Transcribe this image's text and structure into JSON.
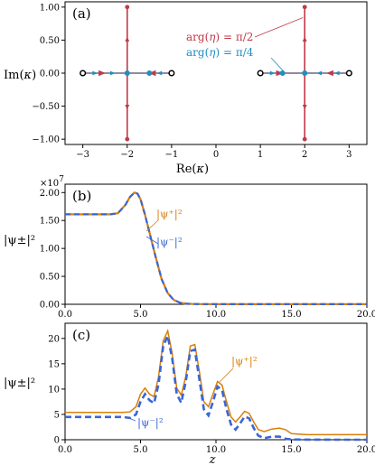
{
  "colors": {
    "red": "#c03a48",
    "blue": "#1f8fc0",
    "orange": "#d97f0a",
    "dash_blue": "#3a66d6",
    "black": "#000000"
  },
  "chart_data": [
    {
      "type": "scatter",
      "panel_label": "(a)",
      "xlabel_base": "Re(",
      "ylabel_base": "Im(",
      "axis_var": "κ",
      "axis_close": ")",
      "xlim": [
        -3.4,
        3.4
      ],
      "ylim": [
        -1.08,
        1.08
      ],
      "xticks": [
        -3,
        -2,
        -1,
        0,
        1,
        2,
        3
      ],
      "xtick_labels": [
        "−3",
        "−2",
        "−1",
        "0",
        "1",
        "2",
        "3"
      ],
      "yticks": [
        -1.0,
        -0.5,
        0.0,
        0.5,
        1.0
      ],
      "ytick_labels": [
        "−1.00",
        "−0.50",
        "0.00",
        "0.50",
        "1.00"
      ],
      "endpoint_points": [
        {
          "x": -3,
          "y": 0
        },
        {
          "x": -1,
          "y": 0
        },
        {
          "x": 1,
          "y": 0
        },
        {
          "x": 3,
          "y": 0
        }
      ],
      "series": [
        {
          "name": "arg(η) = π/2",
          "color": "red",
          "paths": [
            {
              "x": [
                -2,
                -2
              ],
              "y": [
                -1,
                1
              ]
            },
            {
              "x": [
                2,
                2
              ],
              "y": [
                -1,
                1
              ]
            },
            {
              "x": [
                -3,
                -1
              ],
              "y": [
                0,
                0
              ]
            },
            {
              "x": [
                1,
                3
              ],
              "y": [
                0,
                0
              ]
            }
          ],
          "points": [
            {
              "x": -2,
              "y": 1
            },
            {
              "x": -2,
              "y": -1
            },
            {
              "x": 2,
              "y": 1
            },
            {
              "x": 2,
              "y": -1
            },
            {
              "x": 2,
              "y": 0
            }
          ]
        },
        {
          "name": "arg(η) = π/4",
          "color": "blue",
          "paths": [
            {
              "x": [
                -3,
                -1
              ],
              "y": [
                0,
                0
              ]
            },
            {
              "x": [
                1,
                3
              ],
              "y": [
                0,
                0
              ]
            }
          ],
          "points": [
            {
              "x": -2.0,
              "y": 0
            },
            {
              "x": -1.5,
              "y": 0
            },
            {
              "x": 1.5,
              "y": 0
            },
            {
              "x": 2.0,
              "y": 0
            }
          ]
        }
      ],
      "annotations": [
        {
          "text_base": "arg(",
          "text_var": "η",
          "text_rest": ") = π/2",
          "color": "red",
          "target": {
            "x": 2.0,
            "y": 0.85
          }
        },
        {
          "text_base": "arg(",
          "text_var": "η",
          "text_rest": ") = π/4",
          "color": "blue",
          "target": {
            "x": 1.5,
            "y": 0.0
          }
        }
      ]
    },
    {
      "type": "line",
      "panel_label": "(b)",
      "ylabel": "|ψ±|²",
      "offset_label": "×10",
      "offset_exp": "7",
      "xlim": [
        0,
        20
      ],
      "ylim": [
        0,
        2.15
      ],
      "xticks": [
        0,
        5,
        10,
        15,
        20
      ],
      "xtick_labels": [
        "0.0",
        "5.0",
        "10.0",
        "15.0",
        "20.0"
      ],
      "yticks": [
        0,
        0.5,
        1.0,
        1.5,
        2.0
      ],
      "ytick_labels": [
        "0.00",
        "0.50",
        "1.00",
        "1.50",
        "2.00"
      ],
      "x": [
        0,
        1,
        2,
        3,
        3.5,
        4.0,
        4.3,
        4.6,
        4.8,
        5.0,
        5.3,
        5.6,
        6.0,
        6.4,
        6.8,
        7.2,
        7.6,
        8.0,
        8.5,
        9,
        10,
        12,
        15,
        20
      ],
      "series": [
        {
          "name": "|ψ⁺|²",
          "color": "orange",
          "values": [
            1.61,
            1.61,
            1.61,
            1.61,
            1.63,
            1.78,
            1.92,
            2.0,
            1.98,
            1.88,
            1.6,
            1.28,
            0.85,
            0.45,
            0.2,
            0.08,
            0.03,
            0.01,
            0.005,
            0.003,
            0.002,
            0.002,
            0.002,
            0.002
          ]
        },
        {
          "name": "|ψ⁻|²",
          "color": "dash_blue",
          "values": [
            1.61,
            1.61,
            1.61,
            1.61,
            1.63,
            1.78,
            1.92,
            2.0,
            1.98,
            1.88,
            1.6,
            1.28,
            0.85,
            0.45,
            0.2,
            0.08,
            0.03,
            0.01,
            0.005,
            0.003,
            0.002,
            0.002,
            0.002,
            0.002
          ]
        }
      ],
      "annotations": [
        {
          "text": "|ψ⁺|²",
          "color": "orange"
        },
        {
          "text": "|ψ⁻|²",
          "color": "dash_blue"
        }
      ]
    },
    {
      "type": "line",
      "panel_label": "(c)",
      "ylabel": "|ψ±|²",
      "xlabel": "z",
      "xlim": [
        0,
        20
      ],
      "ylim": [
        0,
        23
      ],
      "xticks": [
        0,
        5,
        10,
        15,
        20
      ],
      "xtick_labels": [
        "0.0",
        "5.0",
        "10.0",
        "15.0",
        "20.0"
      ],
      "yticks": [
        0,
        5,
        10,
        15,
        20
      ],
      "ytick_labels": [
        "0",
        "5",
        "10",
        "15",
        "20"
      ],
      "x": [
        0,
        1,
        2,
        3,
        3.8,
        4.3,
        4.7,
        5.0,
        5.3,
        5.6,
        5.9,
        6.2,
        6.5,
        6.8,
        7.1,
        7.4,
        7.7,
        8.0,
        8.3,
        8.6,
        8.9,
        9.2,
        9.5,
        9.8,
        10.1,
        10.4,
        10.7,
        11.0,
        11.3,
        11.6,
        11.9,
        12.2,
        12.5,
        12.8,
        13.2,
        13.7,
        14.2,
        14.6,
        15,
        16,
        18,
        20
      ],
      "series": [
        {
          "name": "|ψ⁺|²",
          "color": "orange",
          "values": [
            5.4,
            5.4,
            5.4,
            5.4,
            5.4,
            5.5,
            6.5,
            9.0,
            10.2,
            9.0,
            8.5,
            12.5,
            19.5,
            21.5,
            17.0,
            10.2,
            8.8,
            12.5,
            18.5,
            18.8,
            13.5,
            7.5,
            6.5,
            9.0,
            11.5,
            10.8,
            7.5,
            4.5,
            3.5,
            4.5,
            5.6,
            5.2,
            3.5,
            2.0,
            1.6,
            2.1,
            2.3,
            2.0,
            1.2,
            1.0,
            1.0,
            1.0
          ]
        },
        {
          "name": "|ψ⁻|²",
          "color": "dash_blue",
          "values": [
            4.5,
            4.5,
            4.5,
            4.5,
            4.5,
            4.3,
            5.0,
            7.5,
            9.0,
            7.8,
            7.2,
            11.0,
            18.5,
            20.5,
            16.0,
            9.0,
            7.3,
            11.5,
            17.5,
            17.8,
            12.0,
            6.0,
            4.8,
            7.5,
            10.5,
            9.8,
            6.0,
            3.0,
            2.0,
            3.2,
            4.6,
            4.2,
            2.3,
            0.8,
            0.3,
            0.6,
            0.6,
            0.2,
            0.05,
            0.02,
            0.0,
            0.0
          ]
        }
      ],
      "annotations": [
        {
          "text": "|ψ⁺|²",
          "color": "orange"
        },
        {
          "text": "|ψ⁻|²",
          "color": "dash_blue"
        }
      ]
    }
  ]
}
